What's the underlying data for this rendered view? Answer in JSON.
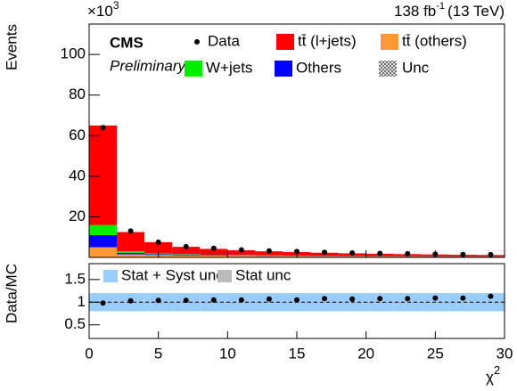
{
  "chart_data": [
    {
      "type": "stacked_histogram",
      "y_label": "Events",
      "y_multiplier": "×10",
      "y_multiplier_exp": "3",
      "lumi": "138 fb",
      "lumi_exp": "-1",
      "lumi_suffix": "(13 TeV)",
      "brand": "CMS",
      "subtitle": "Preliminary",
      "bins": [
        0,
        2,
        4,
        6,
        8,
        10,
        12,
        14,
        16,
        18,
        20,
        22,
        24,
        26,
        28,
        30
      ],
      "series": [
        {
          "name": "tt̄ (others)",
          "color": "#ff9933",
          "values": [
            5,
            1.5,
            1.2,
            1,
            0.9,
            0.8,
            0.7,
            0.6,
            0.55,
            0.5,
            0.45,
            0.4,
            0.35,
            0.3,
            0.3
          ]
        },
        {
          "name": "Others",
          "color": "#0000ff",
          "values": [
            6,
            0.8,
            0.4,
            0.3,
            0.2,
            0.2,
            0.15,
            0.1,
            0.1,
            0.1,
            0.1,
            0.1,
            0.1,
            0.1,
            0.1
          ]
        },
        {
          "name": "W+jets",
          "color": "#00ee00",
          "values": [
            5,
            0.7,
            0.4,
            0.3,
            0.2,
            0.2,
            0.15,
            0.1,
            0.1,
            0.1,
            0.1,
            0.1,
            0.1,
            0.1,
            0.1
          ]
        },
        {
          "name": "tt̄ (l+jets)",
          "color": "#ff0000",
          "values": [
            49,
            9.5,
            5.5,
            3.6,
            2.9,
            2.3,
            2.0,
            1.8,
            1.55,
            1.3,
            1.15,
            1.0,
            0.9,
            0.8,
            0.7
          ]
        }
      ],
      "data": {
        "name": "Data",
        "values": [
          64,
          13,
          7.5,
          5.3,
          4.5,
          3.7,
          3.2,
          2.9,
          2.5,
          2.2,
          2.0,
          1.8,
          1.6,
          1.45,
          1.35
        ]
      },
      "unc_name": "Unc",
      "xlim": [
        0,
        30
      ],
      "ylim": [
        0,
        115
      ],
      "yticks": [
        20,
        40,
        60,
        80,
        100
      ]
    },
    {
      "type": "ratio",
      "y_label": "Data/MC",
      "x_label": "χ",
      "x_label_exp": "2",
      "x": [
        1,
        3,
        5,
        7,
        9,
        11,
        13,
        15,
        17,
        19,
        21,
        23,
        25,
        27,
        29
      ],
      "values": [
        0.98,
        1.03,
        1.04,
        1.04,
        1.05,
        1.05,
        1.07,
        1.05,
        1.08,
        1.07,
        1.08,
        1.08,
        1.09,
        1.09,
        1.13
      ],
      "bands": [
        {
          "name": "Stat + Syst unc",
          "color": "#99ccff",
          "low": [
            0.8,
            0.8,
            0.8,
            0.8,
            0.8,
            0.8,
            0.8,
            0.8,
            0.8,
            0.8,
            0.8,
            0.8,
            0.8,
            0.8,
            0.8
          ],
          "high": [
            1.2,
            1.2,
            1.2,
            1.2,
            1.2,
            1.2,
            1.2,
            1.2,
            1.2,
            1.2,
            1.2,
            1.2,
            1.2,
            1.2,
            1.2
          ]
        },
        {
          "name": "Stat unc",
          "color": "#bbbbbb",
          "low": [
            0.99,
            0.99,
            0.99,
            0.99,
            0.99,
            0.99,
            0.99,
            0.99,
            0.99,
            0.99,
            0.99,
            0.99,
            0.99,
            0.99,
            0.99
          ],
          "high": [
            1.01,
            1.01,
            1.01,
            1.01,
            1.01,
            1.01,
            1.01,
            1.01,
            1.01,
            1.01,
            1.01,
            1.01,
            1.01,
            1.01,
            1.01
          ]
        }
      ],
      "reference_line": 1,
      "xlim": [
        0,
        30
      ],
      "xticks": [
        0,
        5,
        10,
        15,
        20,
        25,
        30
      ],
      "ylim": [
        0.2,
        1.85
      ],
      "yticks": [
        0.5,
        1,
        1.5
      ]
    }
  ]
}
